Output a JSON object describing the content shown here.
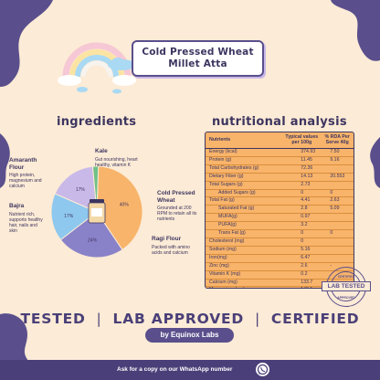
{
  "title": {
    "line1": "Cold Pressed Wheat",
    "line2": "Millet Atta"
  },
  "ingredients": {
    "heading": "Ingredients",
    "items": [
      {
        "name": "Cold Pressed Wheat",
        "percent": 40,
        "pie_label": "40%",
        "description": "Grounded at 200 RPM to retain all its nutrients",
        "color": "#f8b46a"
      },
      {
        "name": "Ragi Flour",
        "percent": 24,
        "pie_label": "24%",
        "description": "Packed with amino acids and calcium",
        "color": "#8a82c8"
      },
      {
        "name": "Bajra",
        "percent": 17,
        "pie_label": "17%",
        "description": "Nutrient rich, supports healthy hair, nails and skin",
        "color": "#8ec8ee"
      },
      {
        "name": "Amaranth Flour",
        "percent": 17,
        "pie_label": "17%",
        "description": "High protein, magnesium and calcium",
        "color": "#c9b9e8"
      },
      {
        "name": "Kale",
        "percent": 2,
        "pie_label": "",
        "description": "Gut nourishing, heart healthy, vitamin K",
        "color": "#6fc187"
      }
    ]
  },
  "nutrition": {
    "heading": "Nutritional Analysis",
    "headers": {
      "nutrients": "Nutrients",
      "typical": "Typical values per 100g",
      "rda": "% RDA Per Serve 40g"
    },
    "rows": [
      {
        "name": "Energy (kcal)",
        "value": "374.93",
        "rda": "7.50",
        "indent": false
      },
      {
        "name": "Protein (g)",
        "value": "11.45",
        "rda": "9.16",
        "indent": false
      },
      {
        "name": "Total Carbohydrates (g)",
        "value": "72.36",
        "rda": "",
        "indent": false
      },
      {
        "name": "Dietary Fiber (g)",
        "value": "14.13",
        "rda": "20.553",
        "indent": false
      },
      {
        "name": "Total Sugars (g)",
        "value": "2.73",
        "rda": "",
        "indent": false
      },
      {
        "name": "Added Sugars (g)",
        "value": "0",
        "rda": "0",
        "indent": true
      },
      {
        "name": "Total Fat (g)",
        "value": "4.41",
        "rda": "2.63",
        "indent": false
      },
      {
        "name": "Saturated Fat (g)",
        "value": "2.8",
        "rda": "5.09",
        "indent": true
      },
      {
        "name": "MUFA(g)",
        "value": "0.97",
        "rda": "",
        "indent": true
      },
      {
        "name": "PUFA(g)",
        "value": "3.2",
        "rda": "",
        "indent": true
      },
      {
        "name": "Trans Fat (g)",
        "value": "0",
        "rda": "0",
        "indent": true
      },
      {
        "name": "Cholesterol (mg)",
        "value": "0",
        "rda": "",
        "indent": false
      },
      {
        "name": "Sodium (mg)",
        "value": "5.16",
        "rda": "",
        "indent": false
      },
      {
        "name": "Iron(mg)",
        "value": "6.47",
        "rda": "",
        "indent": false
      },
      {
        "name": "Zinc (mg)",
        "value": "2.6",
        "rda": "-",
        "indent": false
      },
      {
        "name": "Vitamin K (mg)",
        "value": "0.2",
        "rda": "",
        "indent": false
      },
      {
        "name": "Calcium (mg)",
        "value": "133.7",
        "rda": "",
        "indent": false
      },
      {
        "name": "Magnesium (mg)",
        "value": "140.1",
        "rda": "",
        "indent": false
      }
    ]
  },
  "stamp": {
    "top": "CERTIFIED",
    "banner": "LAB TESTED",
    "bottom": "APPROVED"
  },
  "badges": {
    "tested": "TESTED",
    "approved": "LAB APPROVED",
    "certified": "CERTIFIED",
    "separator": "|"
  },
  "by_line": "by Equinox Labs",
  "footer": {
    "text": "Ask for a copy on our WhatsApp number"
  },
  "colors": {
    "accent": "#4a3f78",
    "background": "#fcebd6",
    "table": "#f8b46a"
  }
}
